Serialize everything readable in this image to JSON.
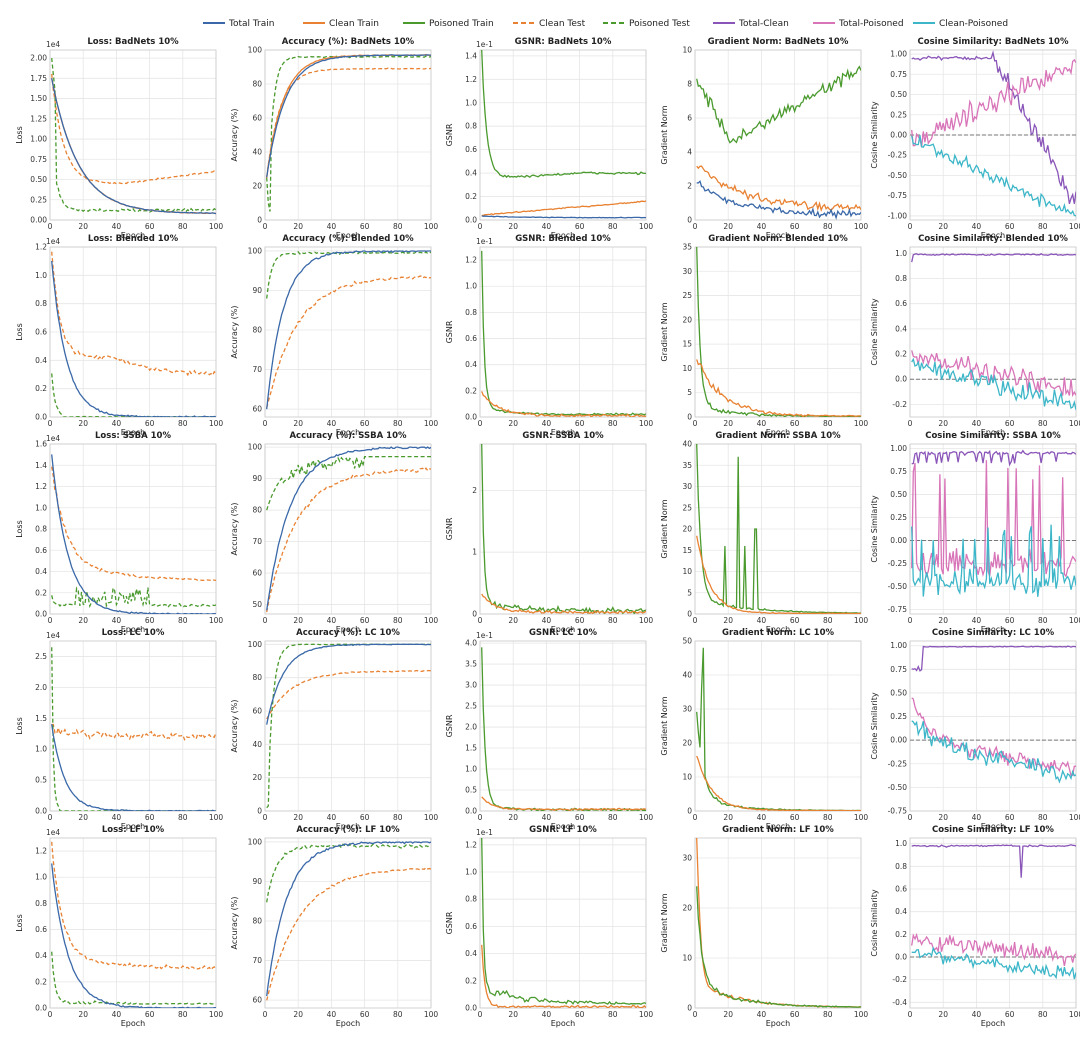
{
  "legend": [
    {
      "name": "Total Train",
      "color": "#3a68a8",
      "dash": false
    },
    {
      "name": "Clean Train",
      "color": "#e88232",
      "dash": false
    },
    {
      "name": "Poisoned Train",
      "color": "#4a9a2e",
      "dash": false
    },
    {
      "name": "Clean Test",
      "color": "#e88232",
      "dash": true
    },
    {
      "name": "Poisoned Test",
      "color": "#4a9a2e",
      "dash": true
    },
    {
      "name": "Total-Clean",
      "color": "#8a55b8",
      "dash": false
    },
    {
      "name": "Total-Poisoned",
      "color": "#d874b8",
      "dash": false
    },
    {
      "name": "Clean-Poisoned",
      "color": "#3cb6c8",
      "dash": false
    }
  ],
  "rows": [
    {
      "attack": "BadNets 10%",
      "loss": {
        "ylim": [
          0,
          2.1
        ],
        "yticks": [
          "0.00",
          "0.25",
          "0.50",
          "0.75",
          "1.00",
          "1.25",
          "1.50",
          "1.75",
          "2.00"
        ],
        "ytickvals": [
          0,
          0.25,
          0.5,
          0.75,
          1,
          1.25,
          1.5,
          1.75,
          2.0
        ],
        "exp": "1e4"
      },
      "acc": {
        "ylim": [
          0,
          100
        ],
        "yticks": [
          "0",
          "20",
          "40",
          "60",
          "80",
          "100"
        ],
        "ytickvals": [
          0,
          20,
          40,
          60,
          80,
          100
        ]
      },
      "gsnr": {
        "ylim": [
          0,
          1.45
        ],
        "yticks": [
          "0.0",
          "0.2",
          "0.4",
          "0.6",
          "0.8",
          "1.0",
          "1.2",
          "1.4"
        ],
        "ytickvals": [
          0,
          0.2,
          0.4,
          0.6,
          0.8,
          1.0,
          1.2,
          1.4
        ],
        "exp": "1e-1"
      },
      "grad": {
        "ylim": [
          0,
          10
        ],
        "yticks": [
          "0",
          "2",
          "4",
          "6",
          "8",
          "10"
        ],
        "ytickvals": [
          0,
          2,
          4,
          6,
          8,
          10
        ]
      },
      "cos": {
        "ylim": [
          -1.05,
          1.05
        ],
        "yticks": [
          "-1.00",
          "-0.75",
          "-0.50",
          "-0.25",
          "0.00",
          "0.25",
          "0.50",
          "0.75",
          "1.00"
        ],
        "ytickvals": [
          -1,
          -0.75,
          -0.5,
          -0.25,
          0,
          0.25,
          0.5,
          0.75,
          1
        ]
      }
    },
    {
      "attack": "Blended 10%",
      "loss": {
        "ylim": [
          0,
          1.2
        ],
        "yticks": [
          "0.0",
          "0.2",
          "0.4",
          "0.6",
          "0.8",
          "1.0",
          "1.2"
        ],
        "ytickvals": [
          0,
          0.2,
          0.4,
          0.6,
          0.8,
          1.0,
          1.2
        ],
        "exp": "1e4"
      },
      "acc": {
        "ylim": [
          58,
          101
        ],
        "yticks": [
          "60",
          "70",
          "80",
          "90",
          "100"
        ],
        "ytickvals": [
          60,
          70,
          80,
          90,
          100
        ]
      },
      "gsnr": {
        "ylim": [
          0,
          1.3
        ],
        "yticks": [
          "0.0",
          "0.2",
          "0.4",
          "0.6",
          "0.8",
          "1.0",
          "1.2"
        ],
        "ytickvals": [
          0,
          0.2,
          0.4,
          0.6,
          0.8,
          1.0,
          1.2
        ],
        "exp": "1e-1"
      },
      "grad": {
        "ylim": [
          0,
          35
        ],
        "yticks": [
          "0",
          "5",
          "10",
          "15",
          "20",
          "25",
          "30",
          "35"
        ],
        "ytickvals": [
          0,
          5,
          10,
          15,
          20,
          25,
          30,
          35
        ]
      },
      "cos": {
        "ylim": [
          -0.3,
          1.05
        ],
        "yticks": [
          "-0.2",
          "0.0",
          "0.2",
          "0.4",
          "0.6",
          "0.8",
          "1.0"
        ],
        "ytickvals": [
          -0.2,
          0,
          0.2,
          0.4,
          0.6,
          0.8,
          1.0
        ]
      }
    },
    {
      "attack": "SSBA 10%",
      "loss": {
        "ylim": [
          0,
          1.6
        ],
        "yticks": [
          "0.0",
          "0.2",
          "0.4",
          "0.6",
          "0.8",
          "1.0",
          "1.2",
          "1.4",
          "1.6"
        ],
        "ytickvals": [
          0,
          0.2,
          0.4,
          0.6,
          0.8,
          1.0,
          1.2,
          1.4,
          1.6
        ],
        "exp": "1e4"
      },
      "acc": {
        "ylim": [
          47,
          101
        ],
        "yticks": [
          "50",
          "60",
          "70",
          "80",
          "90",
          "100"
        ],
        "ytickvals": [
          50,
          60,
          70,
          80,
          90,
          100
        ]
      },
      "gsnr": {
        "ylim": [
          0,
          2.75
        ],
        "yticks": [
          "0",
          "1",
          "2"
        ],
        "ytickvals": [
          0,
          1,
          2
        ],
        "exp": ""
      },
      "grad": {
        "ylim": [
          0,
          40
        ],
        "yticks": [
          "0",
          "5",
          "10",
          "15",
          "20",
          "25",
          "30",
          "35",
          "40"
        ],
        "ytickvals": [
          0,
          5,
          10,
          15,
          20,
          25,
          30,
          35,
          40
        ]
      },
      "cos": {
        "ylim": [
          -0.8,
          1.05
        ],
        "yticks": [
          "-0.75",
          "-0.50",
          "-0.25",
          "0.00",
          "0.25",
          "0.50",
          "0.75",
          "1.00"
        ],
        "ytickvals": [
          -0.75,
          -0.5,
          -0.25,
          0,
          0.25,
          0.5,
          0.75,
          1.0
        ]
      }
    },
    {
      "attack": "LC 10%",
      "loss": {
        "ylim": [
          0,
          2.75
        ],
        "yticks": [
          "0.0",
          "0.5",
          "1.0",
          "1.5",
          "2.0",
          "2.5"
        ],
        "ytickvals": [
          0,
          0.5,
          1.0,
          1.5,
          2.0,
          2.5
        ],
        "exp": "1e4"
      },
      "acc": {
        "ylim": [
          0,
          102
        ],
        "yticks": [
          "0",
          "20",
          "40",
          "60",
          "80",
          "100"
        ],
        "ytickvals": [
          0,
          20,
          40,
          60,
          80,
          100
        ]
      },
      "gsnr": {
        "ylim": [
          0,
          4.05
        ],
        "yticks": [
          "0.0",
          "0.5",
          "1.0",
          "1.5",
          "2.0",
          "2.5",
          "3.0",
          "3.5",
          "4.0"
        ],
        "ytickvals": [
          0,
          0.5,
          1,
          1.5,
          2,
          2.5,
          3,
          3.5,
          4
        ],
        "exp": "1e-1"
      },
      "grad": {
        "ylim": [
          0,
          50
        ],
        "yticks": [
          "0",
          "10",
          "20",
          "30",
          "40",
          "50"
        ],
        "ytickvals": [
          0,
          10,
          20,
          30,
          40,
          50
        ]
      },
      "cos": {
        "ylim": [
          -0.75,
          1.05
        ],
        "yticks": [
          "-0.75",
          "-0.50",
          "-0.25",
          "0.00",
          "0.25",
          "0.50",
          "0.75",
          "1.00"
        ],
        "ytickvals": [
          -0.75,
          -0.5,
          -0.25,
          0,
          0.25,
          0.5,
          0.75,
          1.0
        ]
      }
    },
    {
      "attack": "LF 10%",
      "loss": {
        "ylim": [
          0,
          1.3
        ],
        "yticks": [
          "0.0",
          "0.2",
          "0.4",
          "0.6",
          "0.8",
          "1.0",
          "1.2"
        ],
        "ytickvals": [
          0,
          0.2,
          0.4,
          0.6,
          0.8,
          1.0,
          1.2
        ],
        "exp": "1e4"
      },
      "acc": {
        "ylim": [
          58,
          101
        ],
        "yticks": [
          "60",
          "70",
          "80",
          "90",
          "100"
        ],
        "ytickvals": [
          60,
          70,
          80,
          90,
          100
        ]
      },
      "gsnr": {
        "ylim": [
          0,
          1.25
        ],
        "yticks": [
          "0.0",
          "0.2",
          "0.4",
          "0.6",
          "0.8",
          "1.0",
          "1.2"
        ],
        "ytickvals": [
          0,
          0.2,
          0.4,
          0.6,
          0.8,
          1.0,
          1.2
        ],
        "exp": "1e-1"
      },
      "grad": {
        "ylim": [
          0,
          34
        ],
        "yticks": [
          "0",
          "10",
          "20",
          "30"
        ],
        "ytickvals": [
          0,
          10,
          20,
          30
        ]
      },
      "cos": {
        "ylim": [
          -0.45,
          1.05
        ],
        "yticks": [
          "-0.4",
          "-0.2",
          "0.0",
          "0.2",
          "0.4",
          "0.6",
          "0.8",
          "1.0"
        ],
        "ytickvals": [
          -0.4,
          -0.2,
          0,
          0.2,
          0.4,
          0.6,
          0.8,
          1.0
        ]
      }
    }
  ],
  "labels": {
    "loss_title": "Loss: ",
    "acc_title": "Accuracy (%): ",
    "gsnr_title": "GSNR: ",
    "grad_title": "Gradient Norm: ",
    "cos_title": "Cosine Similarity: ",
    "loss_y": "Loss",
    "acc_y": "Accuracy (%)",
    "gsnr_y": "GSNR",
    "grad_y": "Gradient Norm",
    "cos_y": "Cosine Similarity",
    "x": "Epoch",
    "xticks": [
      "0",
      "20",
      "40",
      "60",
      "80",
      "100"
    ]
  },
  "chart_data": {
    "type": "line",
    "x_range": [
      0,
      100
    ],
    "grid": true,
    "legend_position": "top",
    "series_shapes": {
      "BadNets 10%": {
        "loss": {
          "Total Train": {
            "start": 1.75,
            "end": 0.1,
            "tau": 15
          },
          "Clean Train": {
            "start": 1.75,
            "end": 0.1,
            "tau": 15
          },
          "Clean Test": {
            "start": 1.8,
            "end": 0.6,
            "dip": 0.45
          },
          "Poisoned Test": {
            "start": 2.05,
            "end": 0.15,
            "tau": 3
          }
        },
        "acc": {
          "Total Train": {
            "start": 25,
            "end": 97
          },
          "Clean Train": {
            "start": 25,
            "end": 97
          },
          "Poisoned Train": {
            "start": 25,
            "end": 97
          },
          "Clean Test": {
            "start": 25,
            "end": 89
          },
          "Poisoned Test": {
            "start": 25,
            "end": 96,
            "dip": 5
          }
        },
        "gsnr": {
          "Poisoned Train": {
            "start": 1.4,
            "plateau": 0.4
          },
          "Clean Train": {
            "start": 0.05,
            "end": 0.15
          },
          "Total Train": {
            "start": 0.03,
            "end": 0.01
          }
        },
        "grad": {
          "Poisoned Train": {
            "start": 8.8,
            "min": 4.5,
            "end": 8.9
          },
          "Clean Train": {
            "start": 3,
            "end": 0.7
          },
          "Total Train": {
            "start": 2,
            "end": 0.3
          }
        },
        "cos": {
          "Total-Clean": {
            "start": 0.95,
            "end": -0.8
          },
          "Total-Poisoned": {
            "start": -0.1,
            "end": 0.9
          },
          "Clean-Poisoned": {
            "start": -0.1,
            "end": -1.0
          }
        }
      },
      "Blended 10%": {
        "loss": {
          "Total Train": {
            "start": 1.1,
            "end": 0.0
          },
          "Clean Test": {
            "start": 1.1,
            "end": 0.3
          },
          "Poisoned Test": {
            "start": 0.35,
            "end": 0.0
          }
        },
        "acc": {
          "Total Train": {
            "start": 60,
            "end": 100
          },
          "Clean Test": {
            "start": 60,
            "end": 93.5
          },
          "Poisoned Test": {
            "start": 88,
            "end": 99.5
          }
        },
        "gsnr": {
          "Poisoned Train": {
            "start": 1.25,
            "end": 0.02
          },
          "Clean Train": {
            "start": 0.2,
            "end": 0.01
          }
        },
        "grad": {
          "Poisoned Train": {
            "start": 34,
            "end": 0.1
          },
          "Clean Train": {
            "start": 13,
            "end": 0.2
          }
        },
        "cos": {
          "Total-Clean": {
            "start": 0.98,
            "end": 0.98
          },
          "Total-Poisoned": {
            "start": 0.4,
            "end": -0.1
          },
          "Clean-Poisoned": {
            "start": 0.35,
            "end": -0.2
          }
        }
      },
      "SSBA 10%": {
        "loss": {
          "Total Train": {
            "start": 1.5,
            "end": 0.0
          },
          "Clean Test": {
            "start": 1.5,
            "end": 0.3
          },
          "Poisoned Test": {
            "start": 0.2,
            "end": 0.08
          }
        },
        "acc": {
          "Total Train": {
            "start": 48,
            "end": 99.5
          },
          "Clean Test": {
            "start": 48,
            "end": 93
          },
          "Poisoned Test": {
            "start": 80,
            "end": 97
          }
        },
        "gsnr": {
          "Poisoned Train": {
            "start": 2.7,
            "end": 0.05
          },
          "Clean Train": {
            "start": 0.4,
            "end": 0.03
          }
        },
        "grad": {
          "Poisoned Train": {
            "start": 38,
            "end": 0.1,
            "spikes": [
              37,
              20
            ]
          },
          "Clean Train": {
            "start": 22,
            "end": 0.1
          }
        },
        "cos": {
          "Total-Clean": {
            "level": 0.95
          },
          "Total-Poisoned": {
            "level": -0.2
          },
          "Clean-Poisoned": {
            "level": -0.45
          }
        }
      },
      "LC 10%": {
        "loss": {
          "Total Train": {
            "start": 1.4,
            "end": 0.0
          },
          "Clean Test": {
            "start": 1.4,
            "end": 1.2
          },
          "Poisoned Test": {
            "start": 2.7,
            "end": 0.0
          }
        },
        "acc": {
          "Total Train": {
            "start": 52,
            "end": 100
          },
          "Clean Test": {
            "start": 55,
            "end": 84
          },
          "Poisoned Test": {
            "start": 2,
            "end": 100
          }
        },
        "gsnr": {
          "Poisoned Train": {
            "start": 4.0,
            "end": 0.02
          },
          "Clean Train": {
            "start": 0.35,
            "end": 0.05
          }
        },
        "grad": {
          "Poisoned Train": {
            "start": 26,
            "peak": 48,
            "end": 0.1
          },
          "Clean Train": {
            "start": 17,
            "end": 0.1
          }
        },
        "cos": {
          "Total-Clean": {
            "start": 0.8,
            "end": 1.0
          },
          "Total-Poisoned": {
            "start": 0.5,
            "end": -0.3
          },
          "Clean-Poisoned": {
            "start": 0.25,
            "end": -0.4
          }
        }
      },
      "LF 10%": {
        "loss": {
          "Total Train": {
            "start": 1.1,
            "end": 0.0
          },
          "Clean Test": {
            "start": 1.25,
            "end": 0.3
          },
          "Poisoned Test": {
            "start": 0.4,
            "end": 0.03
          }
        },
        "acc": {
          "Total Train": {
            "start": 61,
            "end": 100
          },
          "Clean Test": {
            "start": 60,
            "end": 93.5
          },
          "Poisoned Test": {
            "start": 85,
            "end": 99
          }
        },
        "gsnr": {
          "Poisoned Train": {
            "start": 1.2,
            "end": 0.03
          },
          "Clean Train": {
            "start": 0.5,
            "end": 0.01
          }
        },
        "grad": {
          "Clean Train": {
            "start": 33,
            "end": 0.1
          },
          "Poisoned Train": {
            "start": 20,
            "end": 0.1
          }
        },
        "cos": {
          "Total-Clean": {
            "level": 0.98
          },
          "Total-Poisoned": {
            "start": 0.3,
            "end": 0.0
          },
          "Clean-Poisoned": {
            "start": 0.2,
            "end": -0.2
          }
        }
      }
    }
  }
}
